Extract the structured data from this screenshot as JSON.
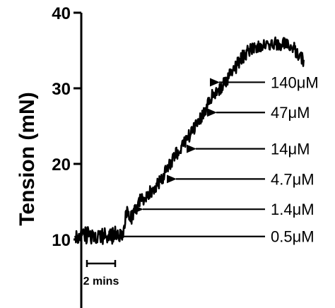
{
  "chart_data": {
    "type": "line",
    "ylabel": "Tension (mN)",
    "yticks": [
      10,
      20,
      30,
      40
    ],
    "ylim": [
      0,
      40
    ],
    "xlim": [
      0,
      28.5
    ],
    "scale_bar": {
      "label": "2 mins",
      "minutes": 2
    },
    "trace_anchors": {
      "x": [
        0,
        2,
        4,
        5,
        6,
        6.4,
        7,
        8,
        9,
        10,
        11,
        12,
        13,
        14,
        15,
        16,
        17,
        18,
        19,
        20,
        21,
        22,
        23,
        24,
        25,
        26,
        27,
        28,
        28.3
      ],
      "y": [
        10.5,
        10.6,
        10.4,
        10.6,
        11.2,
        13.8,
        12.8,
        15.0,
        16.0,
        17.0,
        18.5,
        20.5,
        22.0,
        23.5,
        25.0,
        27.0,
        29.0,
        30.0,
        31.5,
        33.0,
        34.5,
        35.5,
        35.6,
        35.8,
        36.0,
        35.8,
        35.5,
        34.0,
        33.5
      ]
    },
    "annotations": [
      {
        "label": "0.5μM",
        "y": 10.4
      },
      {
        "label": "1.4μM",
        "y": 14.0
      },
      {
        "label": "4.7μM",
        "y": 18.0
      },
      {
        "label": "14μM",
        "y": 22.0
      },
      {
        "label": "47μM",
        "y": 26.8
      },
      {
        "label": "140μM",
        "y": 30.8
      }
    ]
  }
}
